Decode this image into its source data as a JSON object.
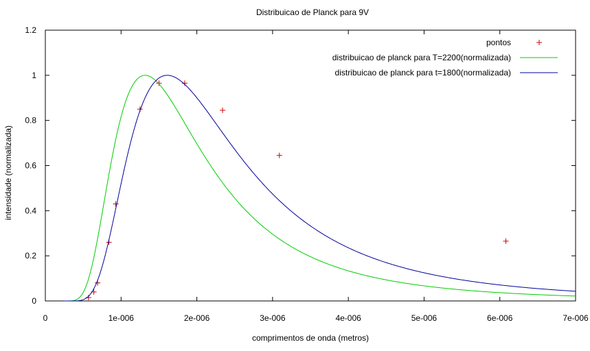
{
  "chart_data": {
    "type": "line",
    "title": "Distribuicao de Planck para 9V",
    "xlabel": "comprimentos de onda (metros)",
    "ylabel": "intensidade (normalizada)",
    "xlim": [
      0,
      7e-06
    ],
    "ylim": [
      0,
      1.2
    ],
    "x_ticks": [
      0,
      1e-06,
      2e-06,
      3e-06,
      4e-06,
      5e-06,
      6e-06,
      7e-06
    ],
    "x_tick_labels": [
      "0",
      "1e-006",
      "2e-006",
      "3e-006",
      "4e-006",
      "5e-006",
      "6e-006",
      "7e-006"
    ],
    "y_ticks": [
      0,
      0.2,
      0.4,
      0.6,
      0.8,
      1,
      1.2
    ],
    "y_tick_labels": [
      "0",
      "0.2",
      "0.4",
      "0.6",
      "0.8",
      "1",
      "1.2"
    ],
    "legend_position": "top-right",
    "grid": false,
    "series": [
      {
        "name": "pontos",
        "kind": "points",
        "marker": "+",
        "color": "#cc0000",
        "x": [
          5.7e-07,
          6.4e-07,
          6.9e-07,
          8.4e-07,
          9.3e-07,
          1.25e-06,
          1.5e-06,
          1.84e-06,
          2.34e-06,
          3.09e-06,
          6.08e-06
        ],
        "y": [
          0.015,
          0.04,
          0.08,
          0.26,
          0.43,
          0.85,
          0.965,
          0.965,
          0.845,
          0.645,
          0.265
        ]
      },
      {
        "name": "distribuicao de planck para T=2200(normalizada)",
        "kind": "planck",
        "temperature": 2200,
        "color": "#00cc00"
      },
      {
        "name": "distribuicao de planck para t=1800(normalizada)",
        "kind": "planck",
        "temperature": 1800,
        "color": "#000099"
      }
    ]
  }
}
